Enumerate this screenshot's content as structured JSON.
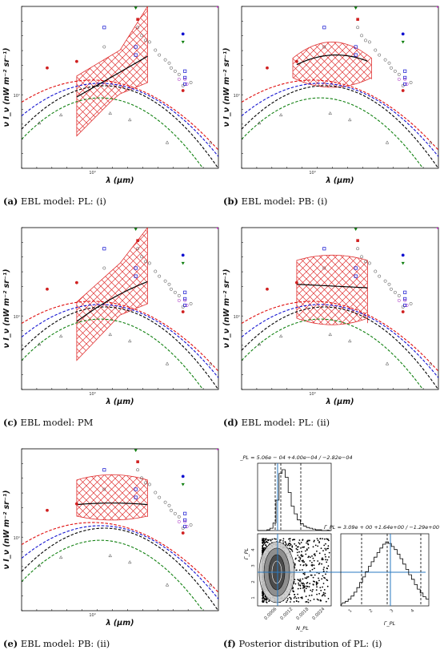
{
  "figure": {
    "panels": [
      {
        "id": "a",
        "letter": "(a)",
        "caption": "EBL model: PL: (i)",
        "band": "up",
        "fit": "rise"
      },
      {
        "id": "b",
        "letter": "(b)",
        "caption": "EBL model: PB: (i)",
        "band": "dome",
        "fit": "dome"
      },
      {
        "id": "c",
        "letter": "(c)",
        "caption": "EBL model: PM",
        "band": "upsteep",
        "fit": "risesteep"
      },
      {
        "id": "d",
        "letter": "(d)",
        "caption": "EBL model: PL: (ii)",
        "band": "flat",
        "fit": "flatdown"
      },
      {
        "id": "e",
        "letter": "(e)",
        "caption": "EBL model: PB: (ii)",
        "band": "flatnarrow",
        "fit": "flatcurve"
      }
    ],
    "corner": {
      "letter": "(f)",
      "caption": "Posterior distribution of PL: (i)"
    }
  },
  "axes": {
    "ylabel": "ν I_ν (nW m⁻² sr⁻¹)",
    "xlabel": "λ (μm)",
    "ytick": "10¹",
    "xtick": "10⁰"
  },
  "corner_plot": {
    "n_title": "N_PL = 5.06e − 04 +4.00e−04 / −2.82e−04",
    "g_title": "Γ_PL = 3.09e + 00 +1.64e+00 / −1.29e+00",
    "n_label": "N_PL",
    "g_label": "Γ_PL",
    "n_ticks": [
      "0.0006",
      "0.0012",
      "0.0018",
      "0.0024"
    ],
    "g_ticks": [
      "1",
      "2",
      "3",
      "4"
    ],
    "g_hist_ticks": [
      "1",
      "2",
      "3",
      "4"
    ]
  },
  "colors": {
    "hatch": "#e03030",
    "model_red": "#e01010",
    "model_blue": "#1010d0",
    "model_black": "#000000",
    "model_green": "#108010",
    "fit_line": "#000000"
  }
}
